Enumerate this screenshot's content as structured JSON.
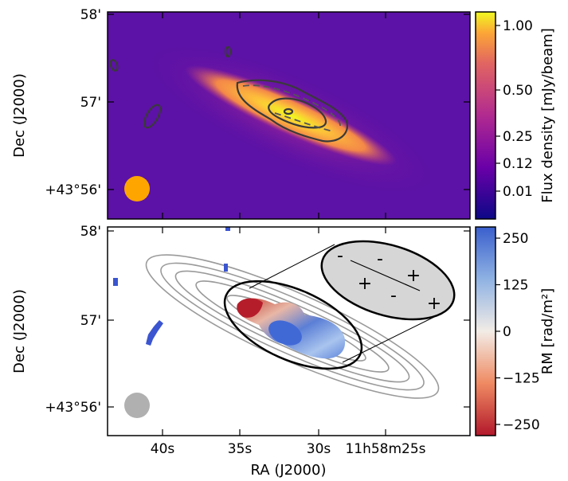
{
  "chart_data": [
    {
      "type": "heatmap",
      "panel": "top",
      "ylabel": "Dec (J2000)",
      "y_ticks": [
        "58'",
        "57'",
        "+43°56'"
      ],
      "colorbar": {
        "label": "Flux density [mJy/beam]",
        "ticks": [
          "1.00",
          "0.50",
          "0.25",
          "0.12",
          "0.01"
        ],
        "tick_values": [
          1.0,
          0.5,
          0.25,
          0.12,
          0.01
        ],
        "colormap": "plasma"
      },
      "beam_color": "#ffa500"
    },
    {
      "type": "heatmap",
      "panel": "bottom",
      "xlabel": "RA (J2000)",
      "ylabel": "Dec (J2000)",
      "x_ticks": [
        "40s",
        "35s",
        "30s",
        "11h58m25s"
      ],
      "y_ticks": [
        "58'",
        "57'",
        "+43°56'"
      ],
      "colorbar": {
        "label": "RM [rad/m²]",
        "ticks": [
          "250",
          "125",
          "0",
          "−125",
          "−250"
        ],
        "tick_values": [
          250,
          125,
          0,
          -125,
          -250
        ],
        "colormap": "RdBu"
      },
      "inset_signs": [
        "-",
        "-",
        "-",
        "+",
        "+",
        "+"
      ],
      "beam_color": "#b0b0b0"
    }
  ]
}
